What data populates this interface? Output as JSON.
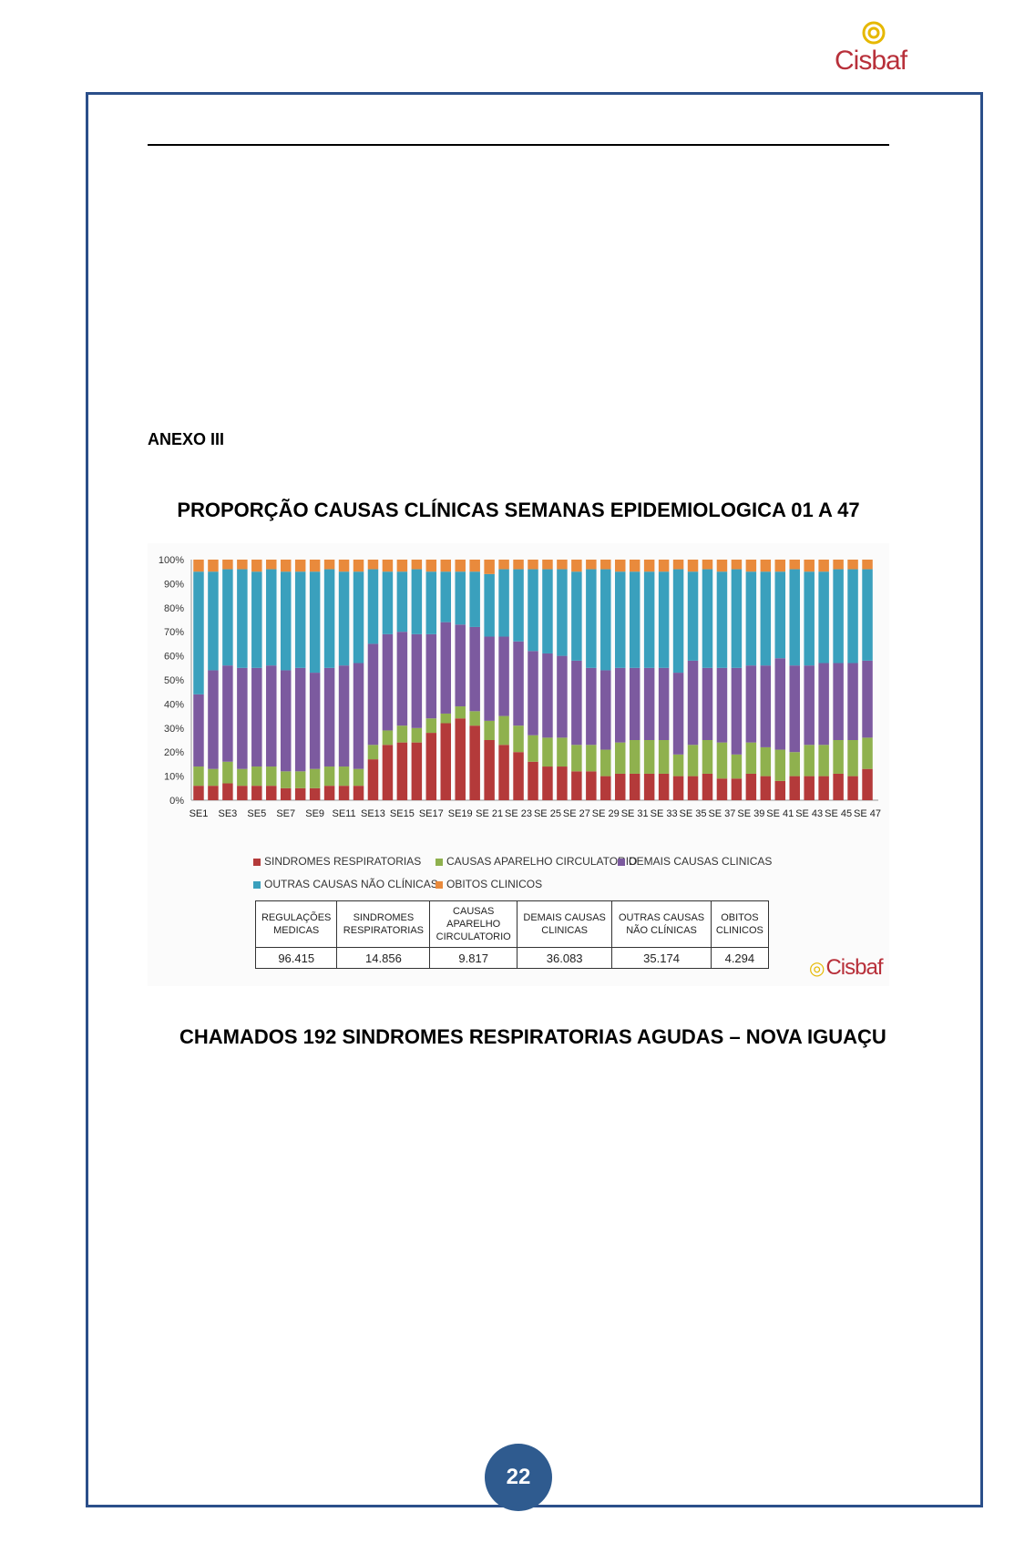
{
  "header": {
    "logo_text": "Cisbaf"
  },
  "annex_label": "ANEXO III",
  "chart_title": "PROPORÇÃO CAUSAS CLÍNICAS SEMANAS EPIDEMIOLOGICA 01 A 47",
  "chart_data": {
    "type": "bar",
    "stacked": "100%",
    "yticks": [
      "0%",
      "10%",
      "20%",
      "30%",
      "40%",
      "50%",
      "60%",
      "70%",
      "80%",
      "90%",
      "100%"
    ],
    "ylim": [
      0,
      100
    ],
    "grid": false,
    "legend_position": "bottom",
    "xtick_labels": [
      "SE1",
      "SE3",
      "SE5",
      "SE7",
      "SE9",
      "SE11",
      "SE13",
      "SE15",
      "SE17",
      "SE19",
      "SE 21",
      "SE 23",
      "SE 25",
      "SE 27",
      "SE 29",
      "SE 31",
      "SE 33",
      "SE 35",
      "SE 37",
      "SE 39",
      "SE 41",
      "SE 43",
      "SE 45",
      "SE 47"
    ],
    "categories": [
      "SE1",
      "SE2",
      "SE3",
      "SE4",
      "SE5",
      "SE6",
      "SE7",
      "SE8",
      "SE9",
      "SE10",
      "SE11",
      "SE12",
      "SE13",
      "SE14",
      "SE15",
      "SE16",
      "SE17",
      "SE18",
      "SE19",
      "SE20",
      "SE 21",
      "SE 22",
      "SE 23",
      "SE 24",
      "SE 25",
      "SE 26",
      "SE 27",
      "SE 28",
      "SE 29",
      "SE 30",
      "SE 31",
      "SE 32",
      "SE 33",
      "SE 34",
      "SE 35",
      "SE 36",
      "SE 37",
      "SE 38",
      "SE 39",
      "SE 40",
      "SE 41",
      "SE 42",
      "SE 43",
      "SE 44",
      "SE 45",
      "SE 46",
      "SE 47"
    ],
    "series": [
      {
        "name": "SINDROMES RESPIRATORIAS",
        "color": "#b43a3a",
        "values": [
          6,
          6,
          7,
          6,
          6,
          6,
          5,
          5,
          5,
          6,
          6,
          6,
          17,
          23,
          24,
          24,
          28,
          32,
          34,
          31,
          25,
          23,
          20,
          16,
          14,
          14,
          12,
          12,
          10,
          11,
          11,
          11,
          11,
          10,
          10,
          11,
          9,
          9,
          11,
          10,
          8,
          10,
          10,
          10,
          11,
          10,
          13
        ]
      },
      {
        "name": "CAUSAS APARELHO CIRCULATORIO",
        "color": "#8fb14e",
        "values": [
          8,
          7,
          9,
          7,
          8,
          8,
          7,
          7,
          8,
          8,
          8,
          7,
          6,
          6,
          7,
          6,
          6,
          4,
          5,
          6,
          8,
          12,
          11,
          11,
          12,
          12,
          11,
          11,
          11,
          13,
          14,
          14,
          14,
          9,
          13,
          14,
          15,
          10,
          13,
          12,
          13,
          10,
          13,
          13,
          14,
          15,
          13
        ]
      },
      {
        "name": "DEMAIS CAUSAS CLINICAS",
        "color": "#7c5a9f",
        "values": [
          30,
          41,
          40,
          42,
          41,
          42,
          42,
          43,
          40,
          41,
          42,
          44,
          42,
          40,
          39,
          39,
          35,
          38,
          34,
          35,
          35,
          33,
          35,
          35,
          35,
          34,
          35,
          32,
          33,
          31,
          30,
          30,
          30,
          34,
          35,
          30,
          31,
          36,
          32,
          34,
          38,
          36,
          33,
          34,
          32,
          32,
          32
        ]
      },
      {
        "name": "OUTRAS CAUSAS NÃO CLÍNICAS",
        "color": "#3aa0bd",
        "values": [
          51,
          41,
          40,
          41,
          40,
          40,
          41,
          40,
          42,
          41,
          39,
          38,
          31,
          26,
          25,
          27,
          26,
          21,
          22,
          23,
          26,
          28,
          30,
          34,
          35,
          36,
          37,
          41,
          42,
          40,
          40,
          40,
          40,
          43,
          37,
          41,
          40,
          41,
          39,
          39,
          36,
          40,
          39,
          38,
          39,
          39,
          38
        ]
      },
      {
        "name": "OBITOS CLINICOS",
        "color": "#e98a3c",
        "values": [
          5,
          5,
          4,
          4,
          5,
          4,
          5,
          5,
          5,
          4,
          5,
          5,
          4,
          5,
          5,
          4,
          5,
          5,
          5,
          5,
          6,
          4,
          4,
          4,
          4,
          4,
          5,
          4,
          4,
          5,
          5,
          5,
          5,
          4,
          5,
          4,
          5,
          4,
          5,
          5,
          5,
          4,
          5,
          5,
          4,
          4,
          4
        ]
      }
    ],
    "legend": [
      {
        "label": "SINDROMES RESPIRATORIAS",
        "color": "#b43a3a"
      },
      {
        "label": "CAUSAS APARELHO CIRCULATORIO",
        "color": "#8fb14e"
      },
      {
        "label": "DEMAIS CAUSAS CLINICAS",
        "color": "#7c5a9f"
      },
      {
        "label": "OUTRAS CAUSAS NÃO CLÍNICAS",
        "color": "#3aa0bd"
      },
      {
        "label": "OBITOS CLINICOS",
        "color": "#e98a3c"
      }
    ]
  },
  "summary_table": {
    "headers": [
      [
        "REGULAÇÕES",
        "MEDICAS"
      ],
      [
        "SINDROMES",
        "RESPIRATORIAS"
      ],
      [
        "CAUSAS",
        "APARELHO",
        "CIRCULATORIO"
      ],
      [
        "DEMAIS CAUSAS",
        "CLINICAS"
      ],
      [
        "OUTRAS CAUSAS",
        "NÃO CLÍNICAS"
      ],
      [
        "OBITOS",
        "CLINICOS"
      ]
    ],
    "values": [
      "96.415",
      "14.856",
      "9.817",
      "36.083",
      "35.174",
      "4.294"
    ]
  },
  "chart_logo_text": "Cisbaf",
  "section_heading": "CHAMADOS 192 SINDROMES RESPIRATORIAS AGUDAS – NOVA IGUAÇU",
  "page_number": "22"
}
